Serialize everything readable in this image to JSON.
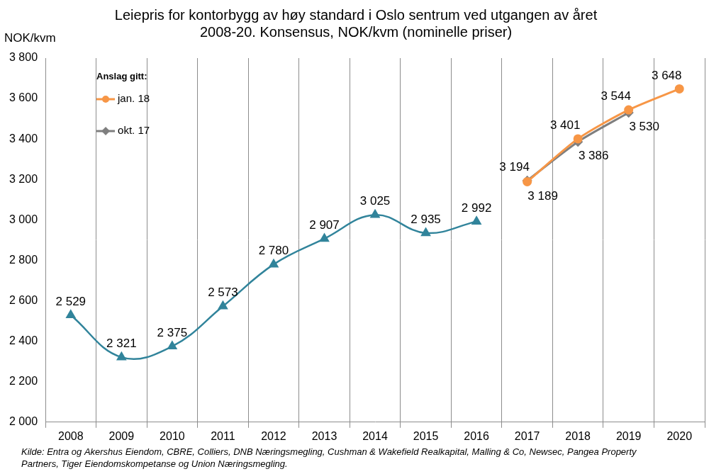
{
  "chart_data": {
    "type": "line",
    "title": [
      "Leiepris for kontorbygg av høy standard i Oslo sentrum ved utgangen av året",
      "2008-20. Konsensus, NOK/kvm (nominelle priser)"
    ],
    "ylabel": "NOK/kvm",
    "legend_title": "Anslag gitt:",
    "source": [
      "Kilde: Entra og Akershus Eiendom, CBRE, Colliers, DNB Næringsmegling, Cushman & Wakefield Realkapital, Malling & Co, Newsec, Pangea Property",
      "Partners, Tiger Eiendomskompetanse og Union Næringsmegling."
    ],
    "categories": [
      "2008",
      "2009",
      "2010",
      "2011",
      "2012",
      "2013",
      "2014",
      "2015",
      "2016",
      "2017",
      "2018",
      "2019",
      "2020"
    ],
    "series": [
      {
        "color": "#31849b",
        "marker": "triangle",
        "values": [
          2529,
          2321,
          2375,
          2573,
          2780,
          2907,
          3025,
          2935,
          2992,
          null,
          null,
          null,
          null
        ],
        "value_labels": [
          "2 529",
          "2 321",
          "2 375",
          "2 573",
          "2 780",
          "2 907",
          "3 025",
          "2 935",
          "2 992",
          null,
          null,
          null,
          null
        ]
      },
      {
        "name": "jan. 18",
        "color": "#f79646",
        "marker": "circle",
        "values": [
          null,
          null,
          null,
          null,
          null,
          null,
          null,
          null,
          null,
          3189,
          3401,
          3544,
          3648
        ],
        "value_labels": [
          null,
          null,
          null,
          null,
          null,
          null,
          null,
          null,
          null,
          "3 189",
          "3 401",
          "3 544",
          "3 648"
        ]
      },
      {
        "name": "okt. 17",
        "color": "#7f7f7f",
        "marker": "diamond",
        "values": [
          null,
          null,
          null,
          null,
          null,
          null,
          null,
          null,
          null,
          3194,
          3386,
          3530,
          null
        ],
        "value_labels": [
          null,
          null,
          null,
          null,
          null,
          null,
          null,
          null,
          null,
          "3 194",
          "3 386",
          "3 530",
          null
        ]
      }
    ],
    "ylim": [
      2000,
      3800
    ],
    "yticks": [
      {
        "value": 2000,
        "label": "2 000"
      },
      {
        "value": 2200,
        "label": "2 200"
      },
      {
        "value": 2400,
        "label": "2 400"
      },
      {
        "value": 2600,
        "label": "2 600"
      },
      {
        "value": 2800,
        "label": "2 800"
      },
      {
        "value": 3000,
        "label": "3 000"
      },
      {
        "value": 3200,
        "label": "3 200"
      },
      {
        "value": 3400,
        "label": "3 400"
      },
      {
        "value": 3600,
        "label": "3 600"
      },
      {
        "value": 3800,
        "label": "3 800"
      }
    ],
    "grid": "x",
    "legend": "top-left",
    "data_labels": true
  }
}
